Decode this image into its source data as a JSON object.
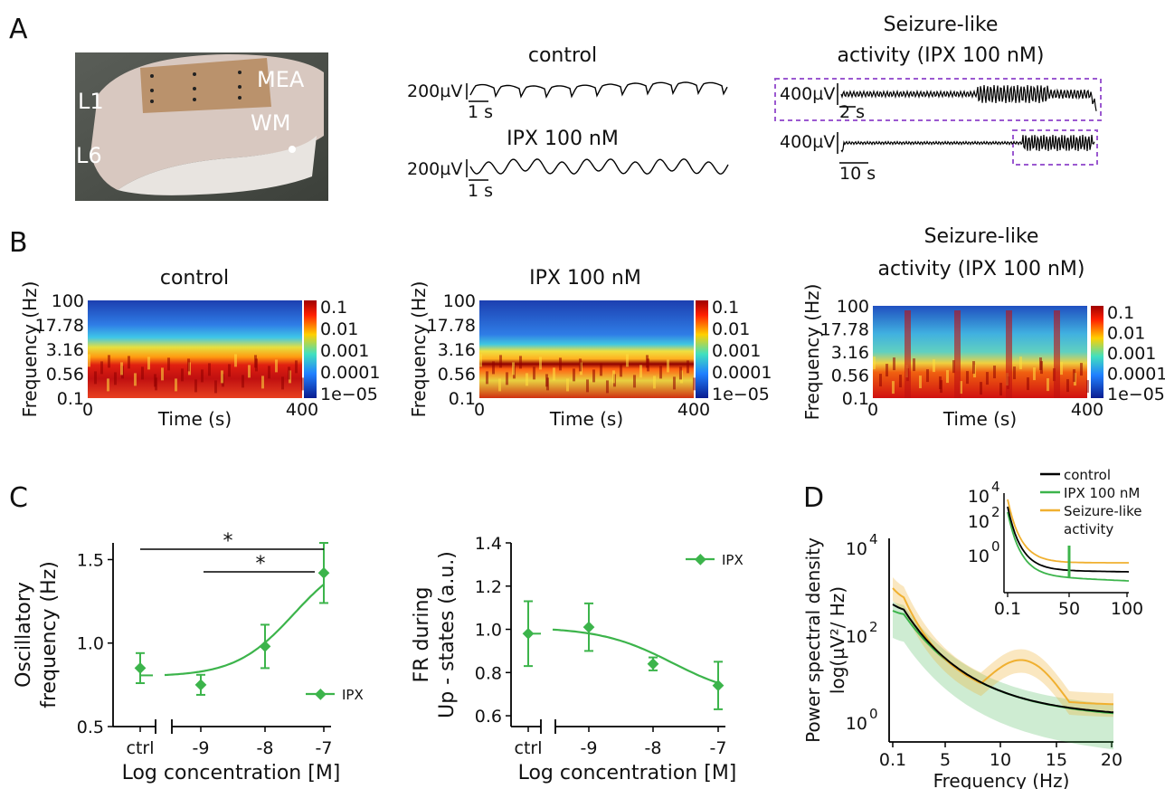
{
  "panels": {
    "a": "A",
    "b": "B",
    "c": "C",
    "d": "D"
  },
  "panel_a": {
    "photo_labels": {
      "l1": "L1",
      "l6": "L6",
      "mea": "MEA",
      "wm": "WM"
    },
    "traces": {
      "control_title": "control",
      "ipx_title": "IPX 100 nM",
      "seizure_title_1": "Seizure-like",
      "seizure_title_2": "activity (IPX 100 nM)",
      "scale_200": "200µV",
      "scale_400": "400µV",
      "time_1s": "1 s",
      "time_2s": "2 s",
      "time_10s": "10 s"
    }
  },
  "panel_b": {
    "titles": [
      "control",
      "IPX 100 nM",
      "Seizure-like",
      "activity (IPX 100 nM)"
    ],
    "ylabel": "Frequency (Hz)",
    "xlabel": "Time (s)",
    "yticks": [
      "100",
      "17.78",
      "3.16",
      "0.56",
      "0.1"
    ],
    "xticks": [
      "0",
      "400"
    ],
    "colorbar_ticks": [
      "0.1",
      "0.01",
      "0.001",
      "0.0001",
      "1e−05"
    ]
  },
  "chart_data": [
    {
      "type": "scatter",
      "panel": "C-left",
      "xlabel": "Log concentration [M]",
      "ylabel_1": "Oscillatory",
      "ylabel_2": "frequency (Hz)",
      "ylim": [
        0.5,
        1.6
      ],
      "yticks": [
        "0.5",
        "1.0",
        "1.5"
      ],
      "xtick_labels": [
        "ctrl",
        "-9",
        "-8",
        "-7"
      ],
      "legend": "IPX",
      "ctrl": {
        "x": "ctrl",
        "y": 0.85,
        "err": 0.09
      },
      "points": [
        {
          "x": -9,
          "y": 0.75,
          "err": 0.06
        },
        {
          "x": -8,
          "y": 0.98,
          "err": 0.13
        },
        {
          "x": -7,
          "y": 1.42,
          "err": 0.18
        }
      ],
      "significance": [
        "*",
        "*"
      ],
      "color": "#3cb44b"
    },
    {
      "type": "scatter",
      "panel": "C-right",
      "xlabel": "Log concentration [M]",
      "ylabel_1": "FR during",
      "ylabel_2": "Up - states (a.u.)",
      "ylim": [
        0.55,
        1.4
      ],
      "yticks": [
        "0.6",
        "0.8",
        "1.0",
        "1.2",
        "1.4"
      ],
      "xtick_labels": [
        "ctrl",
        "-9",
        "-8",
        "-7"
      ],
      "legend": "IPX",
      "ctrl": {
        "x": "ctrl",
        "y": 0.98,
        "err": 0.15
      },
      "points": [
        {
          "x": -9,
          "y": 1.01,
          "err": 0.11
        },
        {
          "x": -8,
          "y": 0.84,
          "err": 0.03
        },
        {
          "x": -7,
          "y": 0.74,
          "err": 0.11
        }
      ],
      "color": "#3cb44b"
    },
    {
      "type": "line",
      "panel": "D",
      "xlabel": "Frequency (Hz)",
      "ylabel_1": "Power spectral density",
      "ylabel_2": "log(µV²/ Hz)",
      "xticks": [
        "0.1",
        "5",
        "10",
        "15",
        "20"
      ],
      "yticks": [
        "10",
        "10",
        "10"
      ],
      "ytick_exponents": [
        "4",
        "2",
        "0"
      ],
      "series": [
        {
          "name": "control",
          "color": "#000000"
        },
        {
          "name": "IPX 100 nM",
          "color": "#3cb44b"
        },
        {
          "name": "Seizure-like activity",
          "color": "#f0b030"
        }
      ],
      "legend_line2": "activity",
      "legend_line1": "Seizure-like",
      "inset": {
        "xticks": [
          "0.1",
          "50",
          "100"
        ],
        "yticks": [
          "10",
          "10",
          "10"
        ],
        "ytick_exponents": [
          "4",
          "2",
          "0"
        ]
      }
    }
  ],
  "colors": {
    "green": "#3cb44b",
    "orange": "#f0b030",
    "purple_dash": "#9b59d0"
  }
}
